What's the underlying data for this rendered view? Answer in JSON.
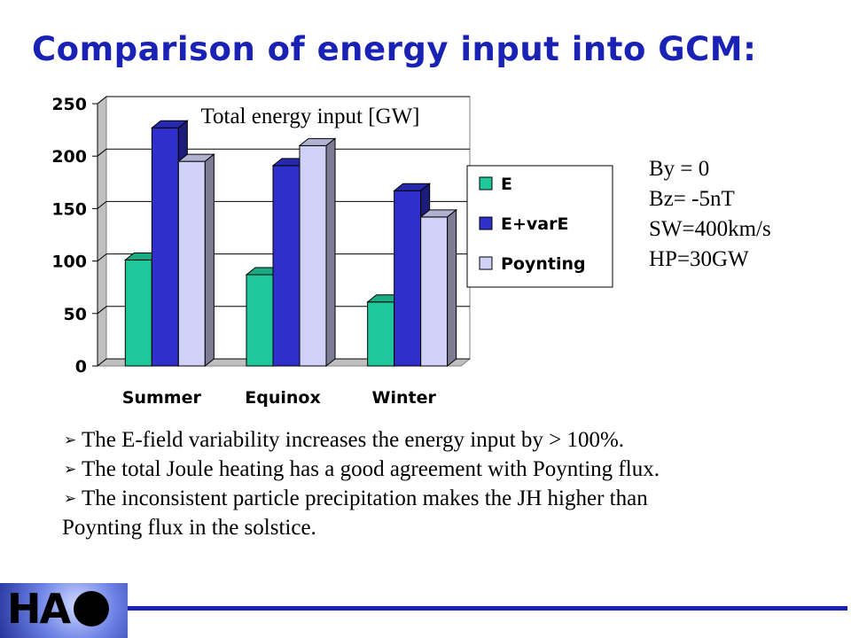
{
  "title": "Comparison of energy input into GCM:",
  "params": [
    "By = 0",
    "Bz= -5nT",
    "SW=400km/s",
    "HP=30GW"
  ],
  "bullets": [
    "The E-field variability increases the energy input by > 100%.",
    "The total Joule heating has a good agreement with Poynting flux.",
    "The inconsistent particle precipitation makes the JH higher than",
    "Poynting flux in the solstice."
  ],
  "logo": {
    "text": "HA"
  },
  "chart_data": {
    "type": "bar",
    "title": "Total energy input [GW]",
    "categories": [
      "Summer",
      "Equinox",
      "Winter"
    ],
    "series": [
      {
        "name": "E",
        "values": [
          101,
          87,
          61
        ],
        "color": "#1ec89b"
      },
      {
        "name": "E+varE",
        "values": [
          227,
          191,
          167
        ],
        "color": "#2f2fcc"
      },
      {
        "name": "Poynting",
        "values": [
          195,
          210,
          142
        ],
        "color": "#cfd1f7"
      }
    ],
    "ylim": [
      0,
      250
    ],
    "yticks": [
      0,
      50,
      100,
      150,
      200,
      250
    ],
    "grid": true,
    "legend": "right",
    "three_d": true
  }
}
